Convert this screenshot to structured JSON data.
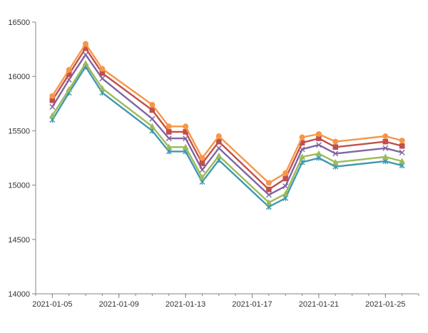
{
  "chart_data": {
    "type": "line",
    "title": "",
    "xlabel": "",
    "ylabel": "",
    "ylim": [
      14000,
      16500
    ],
    "y_ticks": [
      14000,
      14500,
      15000,
      15500,
      16000,
      16500
    ],
    "y_tick_labels": [
      "14000",
      "14500",
      "15000",
      "15500",
      "16000",
      "16500"
    ],
    "x_range": [
      "2021-01-04",
      "2021-01-27"
    ],
    "x_ticks": [
      "2021-01-05",
      "2021-01-09",
      "2021-01-13",
      "2021-01-17",
      "2021-01-21",
      "2021-01-25"
    ],
    "x_tick_labels": [
      "2021-01-05",
      "2021-01-09",
      "2021-01-13",
      "2021-01-17",
      "2021-01-21",
      "2021-01-25"
    ],
    "grid": false,
    "legend": "none",
    "x": [
      "2021-01-05",
      "2021-01-06",
      "2021-01-07",
      "2021-01-08",
      "2021-01-11",
      "2021-01-12",
      "2021-01-13",
      "2021-01-14",
      "2021-01-15",
      "2021-01-18",
      "2021-01-19",
      "2021-01-20",
      "2021-01-21",
      "2021-01-22",
      "2021-01-25",
      "2021-01-26"
    ],
    "series": [
      {
        "color": "#4198AF",
        "marker": "star",
        "values": [
          15600,
          15850,
          16090,
          15850,
          15500,
          15310,
          15310,
          15030,
          15230,
          14800,
          14880,
          15210,
          15250,
          15170,
          15220,
          15180
        ]
      },
      {
        "color": "#8064A2",
        "marker": "x",
        "values": [
          15720,
          15970,
          16200,
          15980,
          15610,
          15430,
          15430,
          15140,
          15340,
          14910,
          14990,
          15330,
          15370,
          15290,
          15340,
          15300
        ]
      },
      {
        "color": "#9BBB59",
        "marker": "triangle",
        "values": [
          15640,
          15880,
          16120,
          15890,
          15540,
          15350,
          15350,
          15070,
          15270,
          14840,
          14920,
          15260,
          15290,
          15210,
          15260,
          15220
        ]
      },
      {
        "color": "#C0504D",
        "marker": "square",
        "values": [
          15780,
          16020,
          16260,
          16030,
          15690,
          15490,
          15490,
          15200,
          15400,
          14960,
          15060,
          15390,
          15430,
          15350,
          15400,
          15360
        ]
      },
      {
        "color": "#F79646",
        "marker": "circle",
        "values": [
          15820,
          16060,
          16300,
          16070,
          15740,
          15540,
          15540,
          15250,
          15450,
          15020,
          15110,
          15440,
          15470,
          15400,
          15450,
          15410
        ]
      }
    ]
  }
}
